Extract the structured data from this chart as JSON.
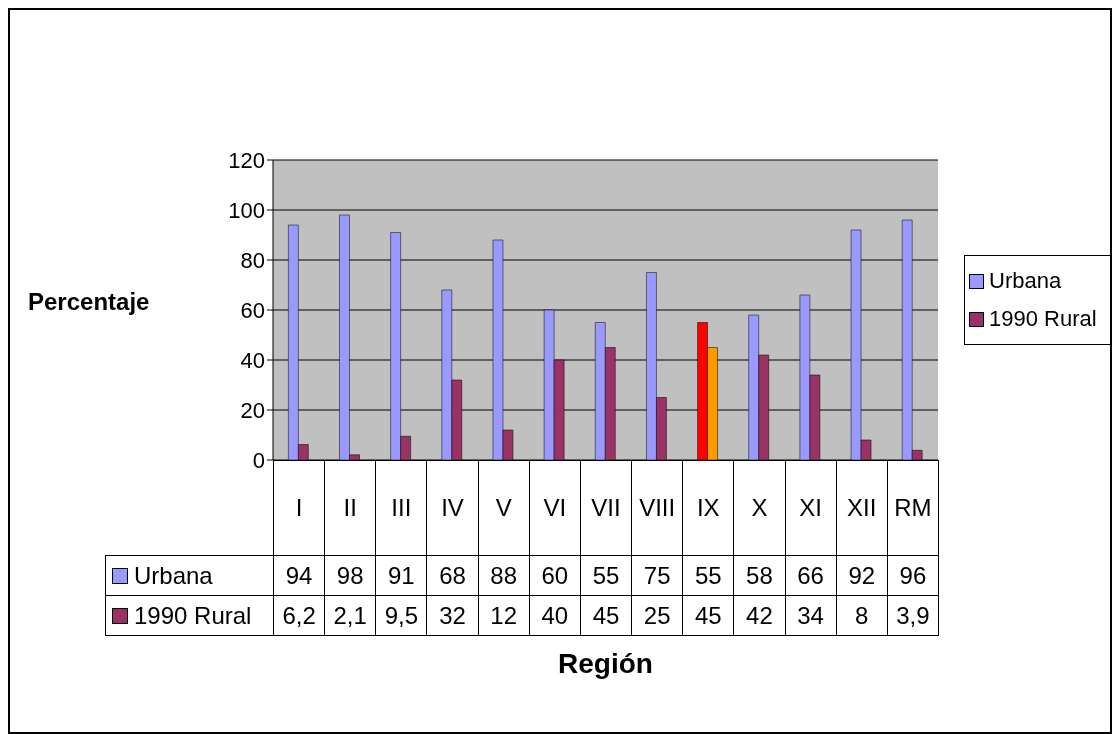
{
  "chart_data": {
    "type": "bar",
    "xlabel": "Región",
    "ylabel": "Percentaje",
    "categories": [
      "I",
      "II",
      "III",
      "IV",
      "V",
      "VI",
      "VII",
      "VIII",
      "IX",
      "X",
      "XI",
      "XII",
      "RM"
    ],
    "series": [
      {
        "name": "Urbana",
        "color": "#9999ff",
        "colors": [
          "#9999ff",
          "#9999ff",
          "#9999ff",
          "#9999ff",
          "#9999ff",
          "#9999ff",
          "#9999ff",
          "#9999ff",
          "#ff0000",
          "#9999ff",
          "#9999ff",
          "#9999ff",
          "#9999ff"
        ],
        "values": [
          94,
          98,
          91,
          68,
          88,
          60,
          55,
          75,
          55,
          58,
          66,
          92,
          96
        ],
        "value_labels": [
          "94",
          "98",
          "91",
          "68",
          "88",
          "60",
          "55",
          "75",
          "55",
          "58",
          "66",
          "92",
          "96"
        ]
      },
      {
        "name": "1990 Rural",
        "color": "#993366",
        "colors": [
          "#993366",
          "#993366",
          "#993366",
          "#993366",
          "#993366",
          "#993366",
          "#993366",
          "#993366",
          "#ff9900",
          "#993366",
          "#993366",
          "#993366",
          "#993366"
        ],
        "values": [
          6.2,
          2.1,
          9.5,
          32,
          12,
          40,
          45,
          25,
          45,
          42,
          34,
          8,
          3.9
        ],
        "value_labels": [
          "6,2",
          "2,1",
          "9,5",
          "32",
          "12",
          "40",
          "45",
          "25",
          "45",
          "42",
          "34",
          "8",
          "3,9"
        ]
      }
    ],
    "ylim": [
      0,
      120
    ],
    "yticks": [
      0,
      20,
      40,
      60,
      80,
      100,
      120
    ],
    "grid": "y",
    "legend": "right"
  }
}
